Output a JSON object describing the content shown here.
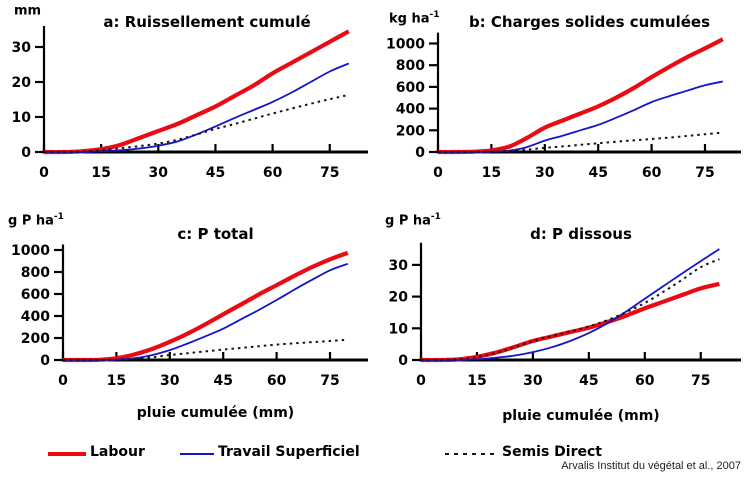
{
  "colors": {
    "labour": "#ea0a14",
    "travail_superficiel": "#1414c8",
    "semis_direct": "#141414",
    "axis": "#000000"
  },
  "legend": {
    "items": [
      {
        "key": "labour",
        "label": "Labour"
      },
      {
        "key": "travail_superficiel",
        "label": "Travail Superficiel"
      },
      {
        "key": "semis_direct",
        "label": "Semis Direct"
      }
    ]
  },
  "attribution": "Arvalis Institut du végétal et al., 2007",
  "chart_data": [
    {
      "id": "a",
      "type": "line",
      "title": "a: Ruissellement cumulé",
      "ylabel_unit": "mm",
      "ylabel_exp": "",
      "xlabel": "",
      "xlim": [
        0,
        84
      ],
      "ylim": [
        0,
        36
      ],
      "xticks": [
        0,
        15,
        30,
        45,
        60,
        75
      ],
      "yticks": [
        0,
        10,
        20,
        30
      ],
      "x": [
        0,
        5,
        10,
        15,
        20,
        25,
        30,
        35,
        40,
        45,
        50,
        55,
        60,
        65,
        70,
        75,
        80
      ],
      "series": [
        {
          "name": "Labour",
          "color_key": "labour",
          "values": [
            0,
            0,
            0.2,
            0.8,
            2,
            4,
            6,
            8,
            10.5,
            13,
            16,
            19,
            22.5,
            25.5,
            28.5,
            31.5,
            34.5
          ]
        },
        {
          "name": "Travail Superficiel",
          "color_key": "travail_superficiel",
          "values": [
            0,
            0,
            0,
            0.2,
            0.5,
            1,
            1.8,
            3,
            5,
            7.3,
            9.7,
            12,
            14.3,
            17,
            20,
            23,
            25.3
          ]
        },
        {
          "name": "Semis Direct",
          "color_key": "semis_direct",
          "values": [
            0,
            0,
            0.1,
            0.5,
            1.1,
            1.7,
            2.4,
            3.5,
            5,
            6.6,
            8,
            9.5,
            11,
            12.4,
            13.8,
            15.1,
            16.3
          ]
        }
      ]
    },
    {
      "id": "b",
      "type": "line",
      "title": "b: Charges solides cumulées",
      "ylabel_unit": "kg ha",
      "ylabel_exp": "-1",
      "xlabel": "",
      "xlim": [
        0,
        84
      ],
      "ylim": [
        0,
        1100
      ],
      "xticks": [
        0,
        15,
        30,
        45,
        60,
        75
      ],
      "yticks": [
        0,
        200,
        400,
        600,
        800,
        1000
      ],
      "x": [
        0,
        5,
        10,
        15,
        20,
        25,
        30,
        35,
        40,
        45,
        50,
        55,
        60,
        65,
        70,
        75,
        80
      ],
      "series": [
        {
          "name": "Labour",
          "color_key": "labour",
          "values": [
            0,
            0,
            3,
            15,
            50,
            130,
            225,
            290,
            355,
            420,
            500,
            590,
            690,
            785,
            875,
            955,
            1040
          ]
        },
        {
          "name": "Travail Superficiel",
          "color_key": "travail_superficiel",
          "values": [
            0,
            0,
            0,
            3,
            12,
            45,
            105,
            150,
            200,
            250,
            315,
            385,
            460,
            515,
            565,
            615,
            650
          ]
        },
        {
          "name": "Semis Direct",
          "color_key": "semis_direct",
          "values": [
            0,
            0,
            0,
            3,
            10,
            22,
            38,
            52,
            66,
            80,
            95,
            107,
            120,
            133,
            148,
            163,
            180
          ]
        }
      ]
    },
    {
      "id": "c",
      "type": "line",
      "title": "c: P total",
      "ylabel_unit": "g P ha",
      "ylabel_exp": "-1",
      "xlabel": "pluie cumulée (mm)",
      "xlim": [
        0,
        84
      ],
      "ylim": [
        0,
        1050
      ],
      "xticks": [
        0,
        15,
        30,
        45,
        60,
        75
      ],
      "yticks": [
        0,
        200,
        400,
        600,
        800,
        1000
      ],
      "x": [
        0,
        5,
        10,
        15,
        20,
        25,
        30,
        35,
        40,
        45,
        50,
        55,
        60,
        65,
        70,
        75,
        80
      ],
      "series": [
        {
          "name": "Labour",
          "color_key": "labour",
          "values": [
            0,
            0,
            2,
            15,
            50,
            100,
            165,
            240,
            325,
            415,
            505,
            595,
            680,
            765,
            845,
            915,
            975
          ]
        },
        {
          "name": "Travail Superficiel",
          "color_key": "travail_superficiel",
          "values": [
            0,
            0,
            0,
            4,
            15,
            45,
            90,
            150,
            215,
            285,
            370,
            455,
            545,
            640,
            730,
            815,
            875
          ]
        },
        {
          "name": "Semis Direct",
          "color_key": "semis_direct",
          "values": [
            0,
            0,
            0,
            2,
            8,
            25,
            45,
            62,
            78,
            95,
            110,
            125,
            140,
            152,
            163,
            173,
            185
          ]
        }
      ]
    },
    {
      "id": "d",
      "type": "line",
      "title": "d: P dissous",
      "ylabel_unit": "g P ha",
      "ylabel_exp": "-1",
      "xlabel": "pluie cumulée (mm)",
      "xlim": [
        0,
        84
      ],
      "ylim": [
        0,
        37
      ],
      "xticks": [
        0,
        15,
        30,
        45,
        60,
        75
      ],
      "yticks": [
        0,
        10,
        20,
        30
      ],
      "x": [
        0,
        5,
        10,
        15,
        20,
        25,
        30,
        35,
        40,
        45,
        50,
        55,
        60,
        65,
        70,
        75,
        80
      ],
      "series": [
        {
          "name": "Labour",
          "color_key": "labour",
          "values": [
            0,
            0,
            0.2,
            1,
            2.3,
            4.1,
            6,
            7.4,
            8.8,
            10.2,
            12,
            14,
            16.3,
            18.4,
            20.5,
            22.6,
            24
          ]
        },
        {
          "name": "Travail Superficiel",
          "color_key": "travail_superficiel",
          "values": [
            0,
            0,
            0,
            0.2,
            0.7,
            1.4,
            2.5,
            4,
            6,
            8.5,
            11.6,
            15.3,
            19.3,
            23.3,
            27.3,
            31.2,
            35
          ]
        },
        {
          "name": "Semis Direct",
          "color_key": "semis_direct",
          "values": [
            0,
            0,
            0.2,
            0.9,
            2.2,
            4,
            6,
            7.5,
            9,
            10.6,
            12.6,
            15.1,
            18,
            21.5,
            25.3,
            29.3,
            31.8
          ]
        }
      ]
    }
  ]
}
